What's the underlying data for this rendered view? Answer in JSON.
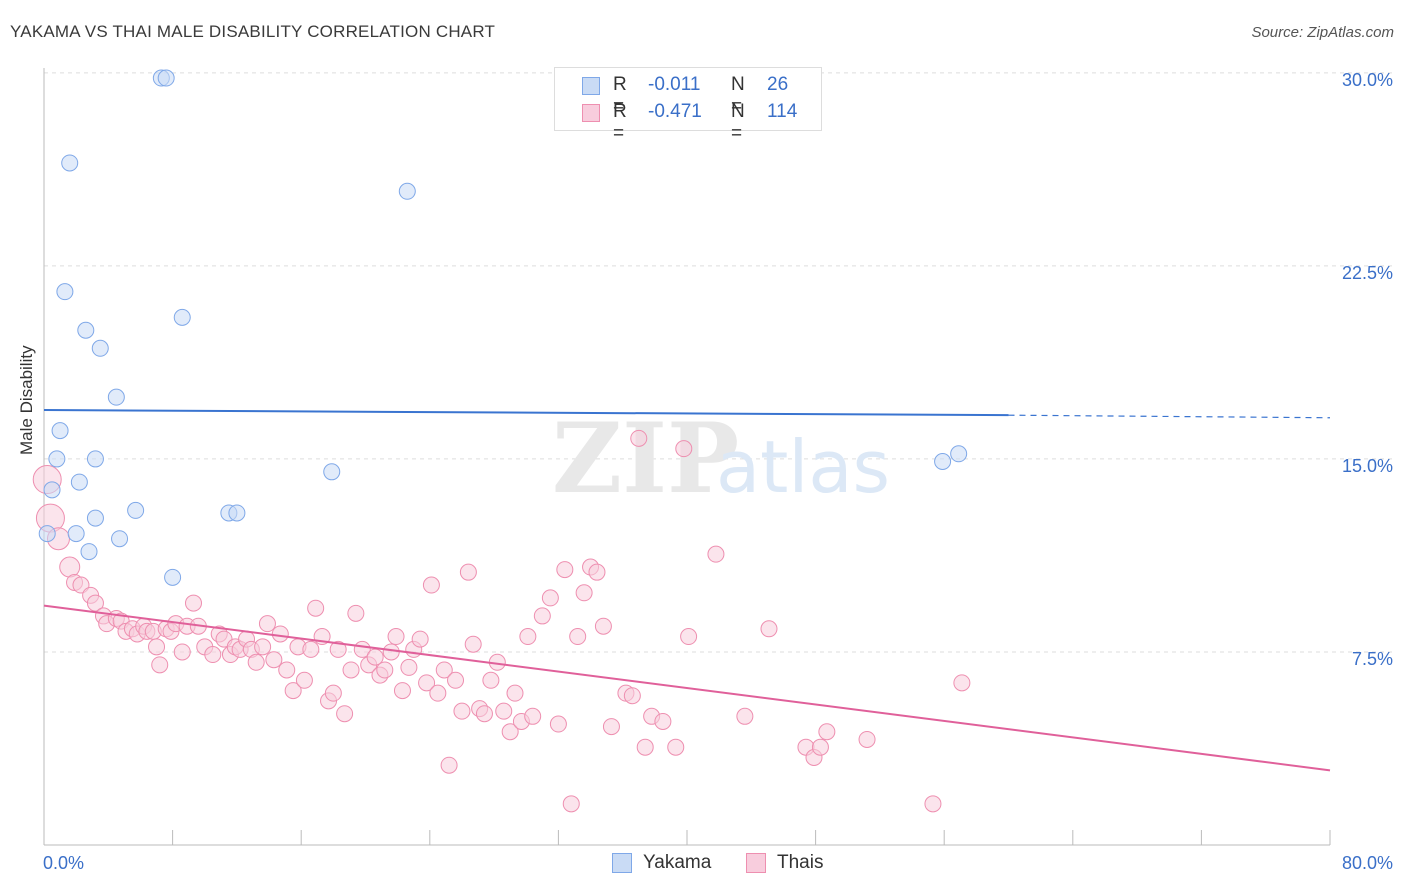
{
  "chart_data": {
    "type": "scatter",
    "title": "YAKAMA VS THAI MALE DISABILITY CORRELATION CHART",
    "source": "Source: ZipAtlas.com",
    "ylabel": "Male Disability",
    "xlim": [
      0,
      80
    ],
    "ylim": [
      0,
      30.5
    ],
    "x_tick_labels": [
      "0.0%",
      "80.0%"
    ],
    "y_ticks": [
      7.5,
      15.0,
      22.5,
      30.0
    ],
    "y_tick_labels": [
      "7.5%",
      "15.0%",
      "22.5%",
      "30.0%"
    ],
    "watermark": {
      "zip": "ZIP",
      "atlas": "atlas"
    },
    "legend": {
      "placement": "top-center",
      "rows": [
        {
          "r_label": "R =",
          "r_value": "-0.011",
          "n_label": "N =",
          "n_value": "26"
        },
        {
          "r_label": "R =",
          "r_value": "-0.471",
          "n_label": "N =",
          "n_value": "114"
        }
      ]
    },
    "series": [
      {
        "name": "Yakama",
        "color": "#7fa8e8",
        "fill": "#c9dbf5",
        "line_color": "#3a74d0",
        "trend": {
          "x0": 0,
          "y0": 16.9,
          "x1": 60,
          "y1": 16.7,
          "dashed_to_x": 80,
          "dashed_to_y": 16.6
        },
        "points": [
          [
            7.3,
            29.8
          ],
          [
            7.6,
            29.8
          ],
          [
            1.6,
            26.5
          ],
          [
            22.6,
            25.4
          ],
          [
            1.3,
            21.5
          ],
          [
            8.6,
            20.5
          ],
          [
            2.6,
            20.0
          ],
          [
            3.5,
            19.3
          ],
          [
            4.5,
            17.4
          ],
          [
            1.0,
            16.1
          ],
          [
            0.8,
            15.0
          ],
          [
            3.2,
            15.0
          ],
          [
            17.9,
            14.5
          ],
          [
            0.5,
            13.8
          ],
          [
            2.2,
            14.1
          ],
          [
            5.7,
            13.0
          ],
          [
            11.5,
            12.9
          ],
          [
            12.0,
            12.9
          ],
          [
            3.2,
            12.7
          ],
          [
            2.0,
            12.1
          ],
          [
            0.2,
            12.1
          ],
          [
            4.7,
            11.9
          ],
          [
            2.8,
            11.4
          ],
          [
            8.0,
            10.4
          ],
          [
            55.9,
            14.9
          ],
          [
            56.9,
            15.2
          ]
        ]
      },
      {
        "name": "Thais",
        "color": "#ee8fb0",
        "fill": "#f8cddd",
        "line_color": "#e0609a",
        "trend": {
          "x0": 0,
          "y0": 9.3,
          "x1": 80,
          "y1": 2.9
        },
        "points": [
          [
            0.2,
            14.2
          ],
          [
            0.4,
            12.7
          ],
          [
            0.9,
            11.9
          ],
          [
            1.6,
            10.8
          ],
          [
            1.9,
            10.2
          ],
          [
            2.3,
            10.1
          ],
          [
            2.9,
            9.7
          ],
          [
            3.2,
            9.4
          ],
          [
            3.7,
            8.9
          ],
          [
            3.9,
            8.6
          ],
          [
            4.5,
            8.8
          ],
          [
            4.8,
            8.7
          ],
          [
            5.1,
            8.3
          ],
          [
            5.5,
            8.4
          ],
          [
            5.8,
            8.2
          ],
          [
            6.2,
            8.5
          ],
          [
            6.4,
            8.3
          ],
          [
            6.8,
            8.3
          ],
          [
            7.0,
            7.7
          ],
          [
            7.2,
            7.0
          ],
          [
            7.6,
            8.4
          ],
          [
            7.9,
            8.3
          ],
          [
            8.2,
            8.6
          ],
          [
            8.6,
            7.5
          ],
          [
            8.9,
            8.5
          ],
          [
            9.3,
            9.4
          ],
          [
            9.6,
            8.5
          ],
          [
            10.0,
            7.7
          ],
          [
            10.5,
            7.4
          ],
          [
            10.9,
            8.2
          ],
          [
            11.2,
            8.0
          ],
          [
            11.6,
            7.4
          ],
          [
            11.9,
            7.7
          ],
          [
            12.2,
            7.6
          ],
          [
            12.6,
            8.0
          ],
          [
            12.9,
            7.6
          ],
          [
            13.2,
            7.1
          ],
          [
            13.6,
            7.7
          ],
          [
            13.9,
            8.6
          ],
          [
            14.3,
            7.2
          ],
          [
            14.7,
            8.2
          ],
          [
            15.1,
            6.8
          ],
          [
            15.5,
            6.0
          ],
          [
            15.8,
            7.7
          ],
          [
            16.2,
            6.4
          ],
          [
            16.6,
            7.6
          ],
          [
            16.9,
            9.2
          ],
          [
            17.3,
            8.1
          ],
          [
            17.7,
            5.6
          ],
          [
            18.0,
            5.9
          ],
          [
            18.3,
            7.6
          ],
          [
            18.7,
            5.1
          ],
          [
            19.1,
            6.8
          ],
          [
            19.4,
            9.0
          ],
          [
            19.8,
            7.6
          ],
          [
            20.2,
            7.0
          ],
          [
            20.6,
            7.3
          ],
          [
            20.9,
            6.6
          ],
          [
            21.2,
            6.8
          ],
          [
            21.6,
            7.5
          ],
          [
            21.9,
            8.1
          ],
          [
            22.3,
            6.0
          ],
          [
            22.7,
            6.9
          ],
          [
            23.0,
            7.6
          ],
          [
            23.4,
            8.0
          ],
          [
            23.8,
            6.3
          ],
          [
            24.1,
            10.1
          ],
          [
            24.5,
            5.9
          ],
          [
            24.9,
            6.8
          ],
          [
            25.2,
            3.1
          ],
          [
            25.6,
            6.4
          ],
          [
            26.0,
            5.2
          ],
          [
            26.4,
            10.6
          ],
          [
            26.7,
            7.8
          ],
          [
            27.1,
            5.3
          ],
          [
            27.4,
            5.1
          ],
          [
            27.8,
            6.4
          ],
          [
            28.2,
            7.1
          ],
          [
            28.6,
            5.2
          ],
          [
            29.0,
            4.4
          ],
          [
            29.3,
            5.9
          ],
          [
            29.7,
            4.8
          ],
          [
            30.1,
            8.1
          ],
          [
            30.4,
            5.0
          ],
          [
            31.0,
            8.9
          ],
          [
            31.5,
            9.6
          ],
          [
            32.0,
            4.7
          ],
          [
            32.4,
            10.7
          ],
          [
            32.8,
            1.6
          ],
          [
            33.2,
            8.1
          ],
          [
            33.6,
            9.8
          ],
          [
            34.0,
            10.8
          ],
          [
            34.4,
            10.6
          ],
          [
            34.8,
            8.5
          ],
          [
            35.3,
            4.6
          ],
          [
            36.2,
            5.9
          ],
          [
            36.6,
            5.8
          ],
          [
            37.0,
            15.8
          ],
          [
            37.4,
            3.8
          ],
          [
            37.8,
            5.0
          ],
          [
            39.8,
            15.4
          ],
          [
            38.5,
            4.8
          ],
          [
            39.3,
            3.8
          ],
          [
            40.1,
            8.1
          ],
          [
            41.8,
            11.3
          ],
          [
            43.6,
            5.0
          ],
          [
            45.1,
            8.4
          ],
          [
            47.4,
            3.8
          ],
          [
            47.9,
            3.4
          ],
          [
            48.3,
            3.8
          ],
          [
            48.7,
            4.4
          ],
          [
            51.2,
            4.1
          ],
          [
            55.3,
            1.6
          ],
          [
            57.1,
            6.3
          ]
        ]
      }
    ]
  }
}
